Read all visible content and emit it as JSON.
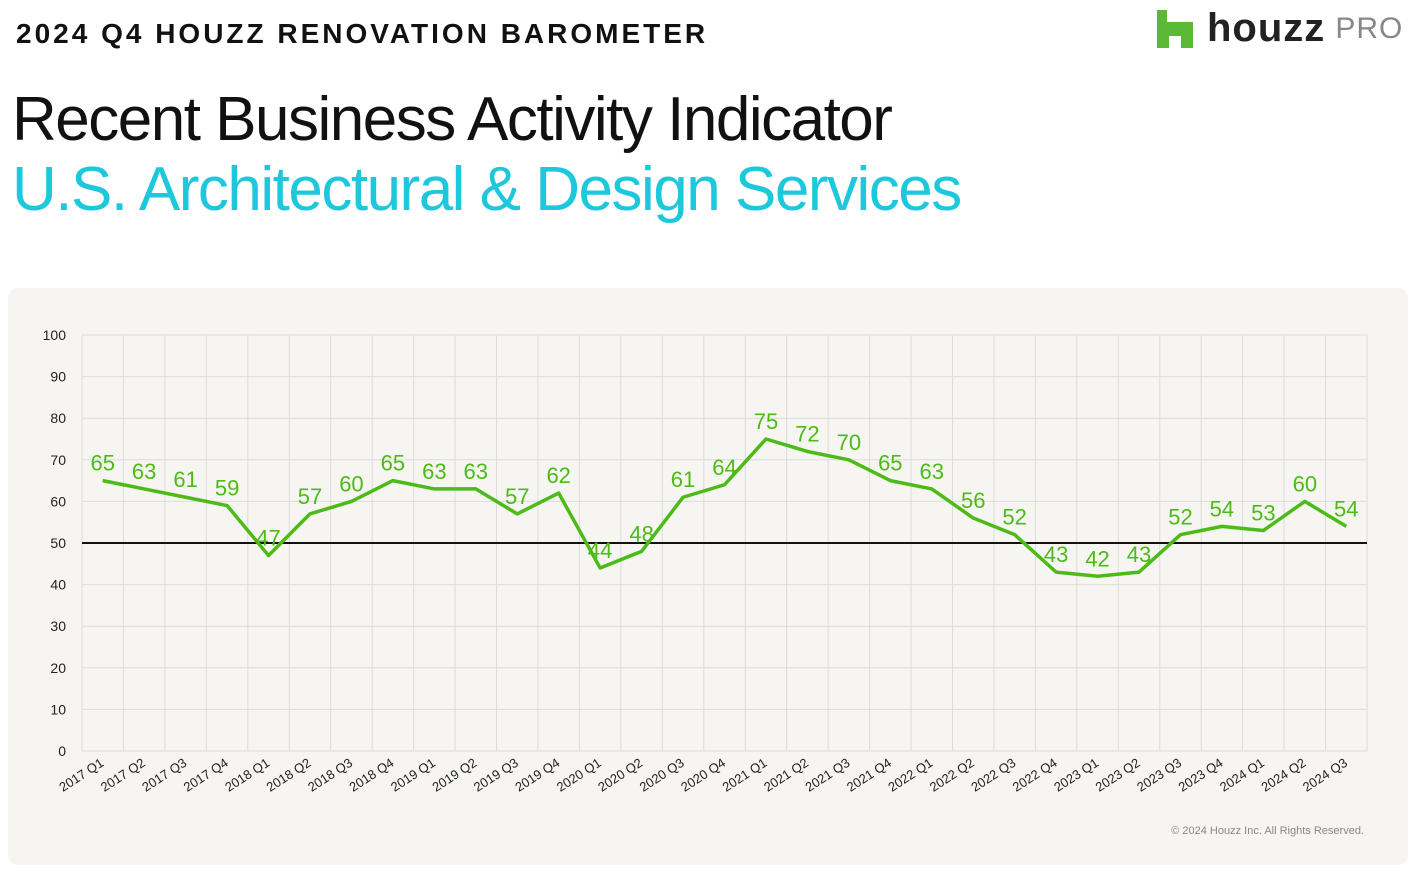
{
  "header": {
    "kicker": "2024 Q4 HOUZZ RENOVATION BAROMETER",
    "title": "Recent Business Activity Indicator",
    "subtitle": "U.S. Architectural & Design Services",
    "logo_word": "houzz",
    "logo_pro": "PRO"
  },
  "colors": {
    "line": "#4cbb17",
    "subtitle": "#1ec8dc",
    "logo": "#5cb935"
  },
  "footer": {
    "copyright": "© 2024 Houzz Inc. All Rights Reserved."
  },
  "chart_data": {
    "type": "line",
    "categories": [
      "2017 Q1",
      "2017 Q2",
      "2017 Q3",
      "2017 Q4",
      "2018 Q1",
      "2018 Q2",
      "2018 Q3",
      "2018 Q4",
      "2019 Q1",
      "2019 Q2",
      "2019 Q3",
      "2019 Q4",
      "2020 Q1",
      "2020 Q2",
      "2020 Q3",
      "2020 Q4",
      "2021 Q1",
      "2021 Q2",
      "2021 Q3",
      "2021 Q4",
      "2022 Q1",
      "2022 Q2",
      "2022 Q3",
      "2022 Q4",
      "2023 Q1",
      "2023 Q2",
      "2023 Q3",
      "2023 Q4",
      "2024 Q1",
      "2024 Q2",
      "2024 Q3"
    ],
    "values": [
      65,
      63,
      61,
      59,
      47,
      57,
      60,
      65,
      63,
      63,
      57,
      62,
      44,
      48,
      61,
      64,
      75,
      72,
      70,
      65,
      63,
      56,
      52,
      43,
      42,
      43,
      52,
      54,
      53,
      60,
      54
    ],
    "ylim": [
      0,
      100
    ],
    "yticks": [
      0,
      10,
      20,
      30,
      40,
      50,
      60,
      70,
      80,
      90,
      100
    ],
    "reference_line": 50,
    "grid": true,
    "data_labels": true
  }
}
